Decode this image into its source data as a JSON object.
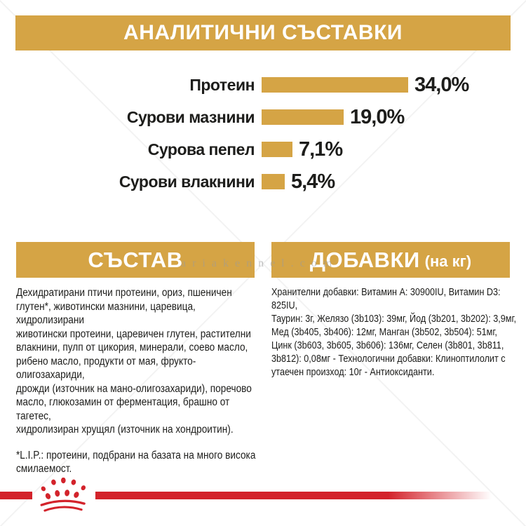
{
  "header": {
    "title": "АНАЛИТИЧНИ СЪСТАВКИ"
  },
  "chart_data": {
    "type": "bar",
    "orientation": "horizontal",
    "title": "АНАЛИТИЧНИ СЪСТАВКИ",
    "categories": [
      "Протеин",
      "Сурови мазнини",
      "Сурова пепел",
      "Сурови влакнини"
    ],
    "values": [
      34.0,
      19.0,
      7.1,
      5.4
    ],
    "value_labels": [
      "34,0%",
      "19,0%",
      "7,1%",
      "5,4%"
    ],
    "unit": "%",
    "xlim": [
      0,
      34
    ],
    "grid": false,
    "legend": false,
    "bar_color": "#D5A445"
  },
  "sections": {
    "composition": {
      "title": "СЪСТАВ",
      "body": "Дехидратирани птичи протеини, ориз, пшеничен\nглутен*, животински мазнини, царевица, хидролизирани\nживотински протеини, царевичен глутен, растителни\nвлакнини, пулп от цикория, минерали, соево масло,\nрибено масло, продукти от мая, фрукто-олигозахариди,\nдрожди (източник на мано-олигозахариди), поречово\nмасло, глюкозамин от ферментация, брашно от тагетес,\nхидролизиран хрущял (източник на хондроитин).",
      "footnote": "*L.I.P.: протеини, подбрани на базата на много висока\nсмилаемост."
    },
    "additives": {
      "title": "ДОБАВКИ",
      "title_suffix": "(на кг)",
      "body": "Хранителни добавки: Витамин A: 30900IU, Витамин D3: 825IU,\nТаурин: 3г, Желязо (3b103): 39мг, Йод (3b201, 3b202): 3,9мг,\nМед (3b405, 3b406): 12мг, Манган (3b502, 3b504): 51мг,\nЦинк (3b603, 3b605, 3b606): 136мг, Селен (3b801, 3b811,\n3b812): 0,08мг - Технологични добавки: Клиноптилолит с\nутаечен произход: 10г - Антиоксиданти."
    }
  },
  "watermark": {
    "text": "ariakennel.com"
  },
  "footer": {
    "logo": "royal-canin-crown-paw"
  },
  "colors": {
    "gold": "#D5A445",
    "red": "#D3232B",
    "text": "#1D1D1B",
    "banner_text": "#FFFFFF"
  }
}
